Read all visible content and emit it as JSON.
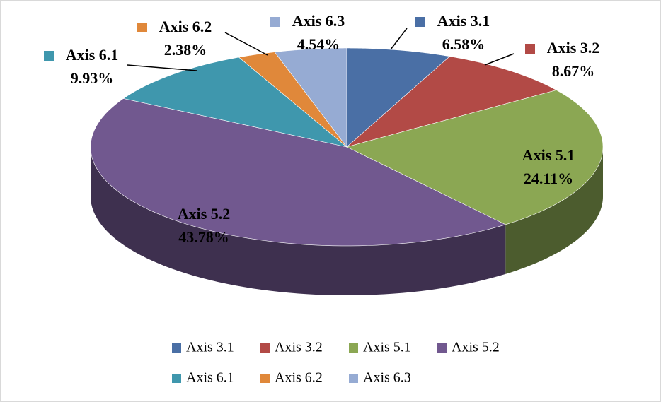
{
  "chart_data": {
    "type": "pie",
    "categories": [
      "Axis 3.1",
      "Axis 3.2",
      "Axis 5.1",
      "Axis 5.2",
      "Axis 6.1",
      "Axis 6.2",
      "Axis 6.3"
    ],
    "values": [
      6.58,
      8.67,
      24.11,
      43.78,
      9.93,
      2.38,
      4.54
    ],
    "value_labels": [
      "6.58%",
      "8.67%",
      "24.11%",
      "43.78%",
      "9.93%",
      "2.38%",
      "4.54%"
    ],
    "colors": [
      "#4a6fa5",
      "#b24a46",
      "#8ba753",
      "#71588f",
      "#3f97ad",
      "#e0883a",
      "#96abd3"
    ],
    "legend": "bottom"
  }
}
